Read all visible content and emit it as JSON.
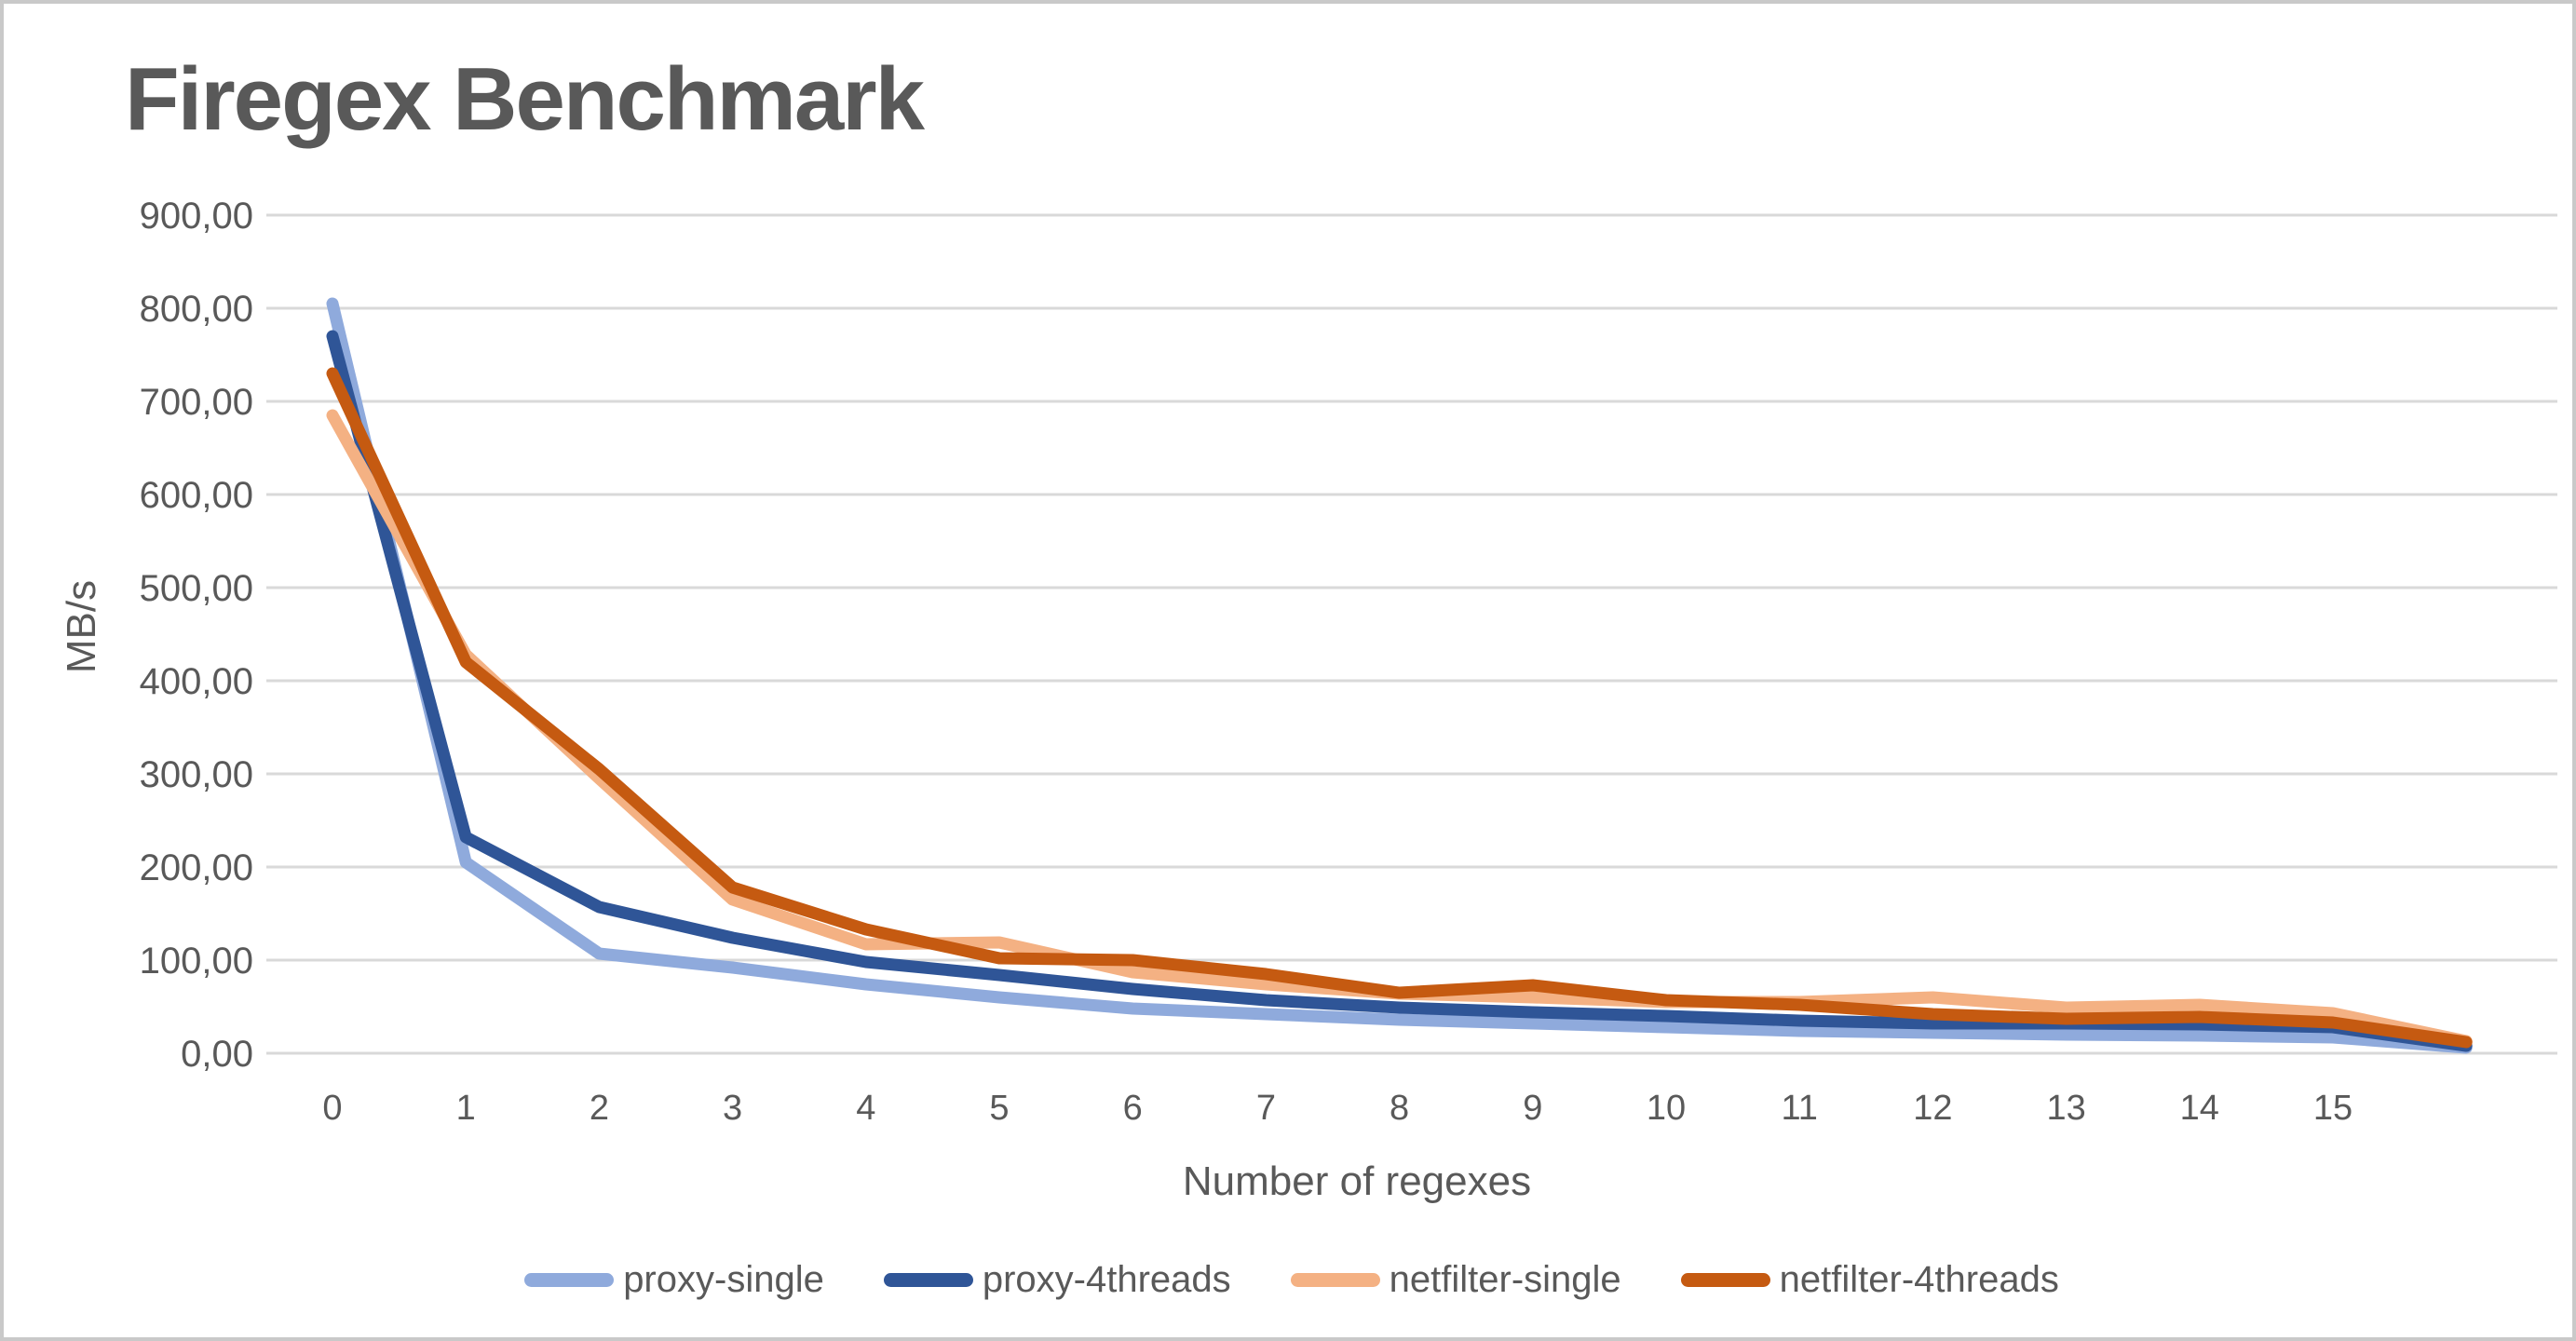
{
  "title": "Firegex Benchmark",
  "colors": {
    "text": "#595959",
    "gridline": "#D9D9D9",
    "border": "#C9C9C9",
    "background": "#FFFFFF"
  },
  "chart_data": {
    "type": "line",
    "title": "Firegex Benchmark",
    "xlabel": "Number of regexes",
    "ylabel": "MB/s",
    "x": [
      0,
      1,
      2,
      3,
      4,
      5,
      6,
      7,
      8,
      9,
      10,
      11,
      12,
      13,
      14,
      15,
      16
    ],
    "x_tick_labels": [
      "0",
      "1",
      "2",
      "3",
      "4",
      "5",
      "6",
      "7",
      "8",
      "9",
      "10",
      "11",
      "12",
      "13",
      "14",
      "15"
    ],
    "y_ticks": [
      0,
      100,
      200,
      300,
      400,
      500,
      600,
      700,
      800,
      900
    ],
    "y_tick_labels": [
      "0,00",
      "100,00",
      "200,00",
      "300,00",
      "400,00",
      "500,00",
      "600,00",
      "700,00",
      "800,00",
      "900,00"
    ],
    "ylim": [
      0,
      900
    ],
    "grid": "horizontal",
    "legend_position": "bottom",
    "series": [
      {
        "name": "proxy-single",
        "color": "#8FAADC",
        "values": [
          805,
          205,
          107,
          92,
          74,
          60,
          48,
          42,
          36,
          32,
          28,
          24,
          22,
          20,
          19,
          17,
          6
        ]
      },
      {
        "name": "proxy-4threads",
        "color": "#2F5597",
        "values": [
          770,
          232,
          157,
          124,
          98,
          84,
          69,
          57,
          49,
          44,
          40,
          35,
          32,
          32,
          31,
          28,
          8
        ]
      },
      {
        "name": "netfilter-single",
        "color": "#F4B183",
        "values": [
          685,
          428,
          295,
          165,
          117,
          119,
          87,
          74,
          64,
          60,
          55,
          55,
          60,
          49,
          52,
          43,
          13
        ]
      },
      {
        "name": "netfilter-4threads",
        "color": "#C55A11",
        "values": [
          730,
          420,
          305,
          178,
          133,
          102,
          100,
          85,
          65,
          73,
          57,
          52,
          42,
          37,
          39,
          33,
          12
        ]
      }
    ]
  }
}
